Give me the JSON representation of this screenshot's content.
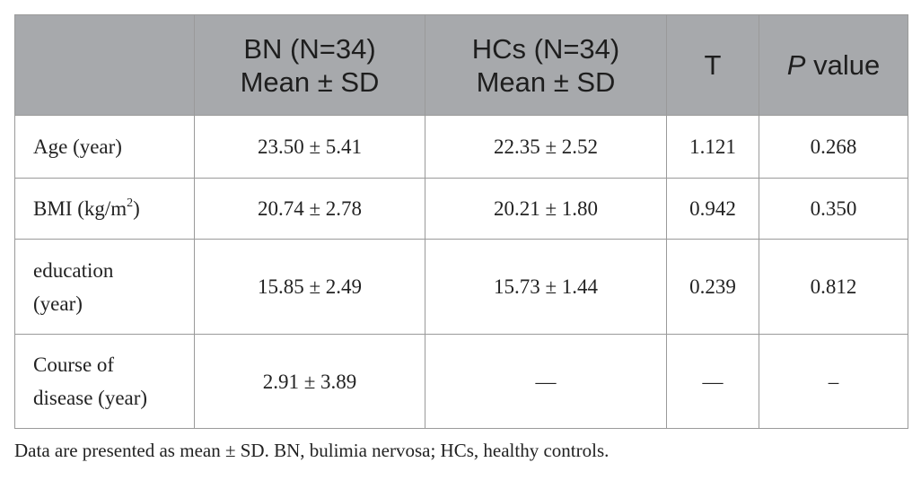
{
  "table": {
    "header": [
      [],
      [
        "BN (N=34)",
        "Mean ± SD"
      ],
      [
        "HCs (N=34)",
        "Mean ± SD"
      ],
      [
        "T"
      ],
      [
        [
          {
            "text": "P",
            "italic": true
          },
          {
            "text": "value"
          }
        ]
      ]
    ],
    "rows": [
      [
        [
          "Age (year)"
        ],
        [
          "23.50 ± 5.41"
        ],
        [
          "22.35 ± 2.52"
        ],
        [
          "1.121"
        ],
        [
          "0.268"
        ]
      ],
      [
        [
          [
            {
              "text": "BMI (kg/m"
            },
            {
              "text": "2",
              "sup": true
            },
            {
              "text": ")"
            }
          ]
        ],
        [
          "20.74 ± 2.78"
        ],
        [
          "20.21 ± 1.80"
        ],
        [
          "0.942"
        ],
        [
          "0.350"
        ]
      ],
      [
        [
          "education",
          "(year)"
        ],
        [
          "15.85 ± 2.49"
        ],
        [
          "15.73 ± 1.44"
        ],
        [
          "0.239"
        ],
        [
          "0.812"
        ]
      ],
      [
        [
          "Course of",
          "disease (year)"
        ],
        [
          "2.91 ± 3.89"
        ],
        [
          "—"
        ],
        [
          "—"
        ],
        [
          "–"
        ]
      ]
    ],
    "footnote": "Data are presented as mean ± SD. BN, bulimia nervosa; HCs, healthy controls."
  }
}
